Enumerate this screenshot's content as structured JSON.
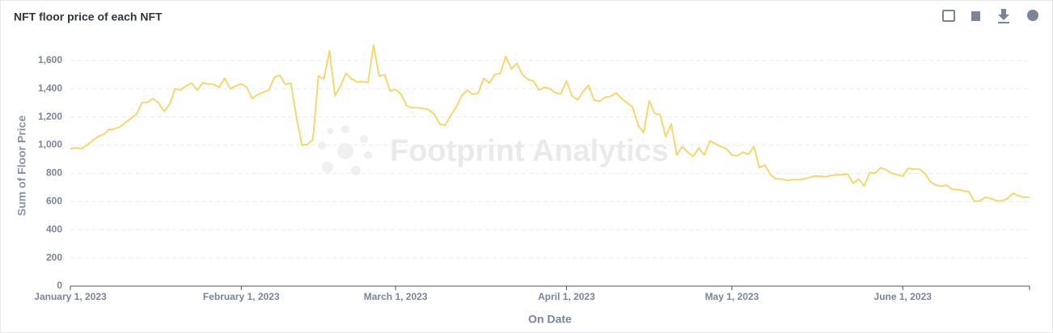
{
  "chart_data": {
    "type": "line",
    "title": "NFT floor price of each NFT",
    "xlabel": "On Date",
    "ylabel": "Sum of Floor Price",
    "watermark": "Footprint Analytics",
    "x": [
      "2023-01-01",
      "2023-01-02",
      "2023-01-03",
      "2023-01-04",
      "2023-01-05",
      "2023-01-06",
      "2023-01-07",
      "2023-01-08",
      "2023-01-09",
      "2023-01-10",
      "2023-01-11",
      "2023-01-12",
      "2023-01-13",
      "2023-01-14",
      "2023-01-15",
      "2023-01-16",
      "2023-01-17",
      "2023-01-18",
      "2023-01-19",
      "2023-01-20",
      "2023-01-21",
      "2023-01-22",
      "2023-01-23",
      "2023-01-24",
      "2023-01-25",
      "2023-01-26",
      "2023-01-27",
      "2023-01-28",
      "2023-01-29",
      "2023-01-30",
      "2023-01-31",
      "2023-02-01",
      "2023-02-02",
      "2023-02-03",
      "2023-02-04",
      "2023-02-05",
      "2023-02-06",
      "2023-02-07",
      "2023-02-08",
      "2023-02-09",
      "2023-02-10",
      "2023-02-11",
      "2023-02-12",
      "2023-02-13",
      "2023-02-14",
      "2023-02-15",
      "2023-02-16",
      "2023-02-17",
      "2023-02-18",
      "2023-02-19",
      "2023-02-20",
      "2023-02-21",
      "2023-02-22",
      "2023-02-23",
      "2023-02-24",
      "2023-02-25",
      "2023-02-26",
      "2023-02-27",
      "2023-02-28",
      "2023-03-01",
      "2023-03-02",
      "2023-03-03",
      "2023-03-04",
      "2023-03-05",
      "2023-03-06",
      "2023-03-07",
      "2023-03-08",
      "2023-03-09",
      "2023-03-10",
      "2023-03-11",
      "2023-03-12",
      "2023-03-13",
      "2023-03-14",
      "2023-03-15",
      "2023-03-16",
      "2023-03-17",
      "2023-03-18",
      "2023-03-19",
      "2023-03-20",
      "2023-03-21",
      "2023-03-22",
      "2023-03-23",
      "2023-03-24",
      "2023-03-25",
      "2023-03-26",
      "2023-03-27",
      "2023-03-28",
      "2023-03-29",
      "2023-03-30",
      "2023-03-31",
      "2023-04-01",
      "2023-04-02",
      "2023-04-03",
      "2023-04-04",
      "2023-04-05",
      "2023-04-06",
      "2023-04-07",
      "2023-04-08",
      "2023-04-09",
      "2023-04-10",
      "2023-04-11",
      "2023-04-12",
      "2023-04-13",
      "2023-04-14",
      "2023-04-15",
      "2023-04-16",
      "2023-04-17",
      "2023-04-18",
      "2023-04-19",
      "2023-04-20",
      "2023-04-21",
      "2023-04-22",
      "2023-04-23",
      "2023-04-24",
      "2023-04-25",
      "2023-04-26",
      "2023-04-27",
      "2023-04-28",
      "2023-04-29",
      "2023-04-30",
      "2023-05-01",
      "2023-05-02",
      "2023-05-03",
      "2023-05-04",
      "2023-05-05",
      "2023-05-06",
      "2023-05-07",
      "2023-05-08",
      "2023-05-09",
      "2023-05-10",
      "2023-05-11",
      "2023-05-12",
      "2023-05-13",
      "2023-05-14",
      "2023-05-15",
      "2023-05-16",
      "2023-05-17",
      "2023-05-18",
      "2023-05-19",
      "2023-05-20",
      "2023-05-21",
      "2023-05-22",
      "2023-05-23",
      "2023-05-24",
      "2023-05-25",
      "2023-05-26",
      "2023-05-27",
      "2023-05-28",
      "2023-05-29",
      "2023-05-30",
      "2023-05-31",
      "2023-06-01",
      "2023-06-02",
      "2023-06-03",
      "2023-06-04",
      "2023-06-05",
      "2023-06-06",
      "2023-06-07",
      "2023-06-08",
      "2023-06-09",
      "2023-06-10",
      "2023-06-11",
      "2023-06-12",
      "2023-06-13",
      "2023-06-14",
      "2023-06-15",
      "2023-06-16",
      "2023-06-17",
      "2023-06-18",
      "2023-06-19",
      "2023-06-20",
      "2023-06-21",
      "2023-06-22",
      "2023-06-23",
      "2023-06-24"
    ],
    "series": [
      {
        "name": "Sum of Floor Price",
        "color": "#f5d76e",
        "values": [
          975,
          980,
          975,
          1000,
          1030,
          1060,
          1075,
          1110,
          1115,
          1130,
          1160,
          1190,
          1220,
          1300,
          1305,
          1330,
          1300,
          1240,
          1290,
          1400,
          1390,
          1420,
          1440,
          1390,
          1440,
          1435,
          1430,
          1410,
          1475,
          1400,
          1420,
          1435,
          1410,
          1330,
          1360,
          1375,
          1390,
          1480,
          1495,
          1430,
          1440,
          1200,
          1000,
          1005,
          1040,
          1490,
          1470,
          1670,
          1350,
          1420,
          1510,
          1470,
          1450,
          1450,
          1445,
          1710,
          1490,
          1500,
          1385,
          1395,
          1360,
          1280,
          1265,
          1265,
          1260,
          1250,
          1220,
          1150,
          1140,
          1210,
          1270,
          1350,
          1390,
          1360,
          1370,
          1475,
          1440,
          1500,
          1510,
          1630,
          1540,
          1580,
          1500,
          1465,
          1455,
          1390,
          1410,
          1400,
          1370,
          1365,
          1455,
          1350,
          1320,
          1380,
          1425,
          1320,
          1310,
          1340,
          1345,
          1370,
          1330,
          1300,
          1270,
          1140,
          1090,
          1315,
          1225,
          1215,
          1060,
          1150,
          930,
          990,
          950,
          920,
          980,
          930,
          1030,
          1010,
          990,
          975,
          930,
          925,
          950,
          935,
          990,
          840,
          860,
          790,
          760,
          760,
          750,
          755,
          755,
          760,
          770,
          780,
          780,
          775,
          785,
          790,
          790,
          795,
          730,
          760,
          710,
          805,
          800,
          840,
          825,
          800,
          790,
          780,
          835,
          830,
          830,
          800,
          740,
          715,
          710,
          715,
          685,
          685,
          675,
          670,
          600,
          605,
          630,
          620,
          605,
          605,
          620,
          660,
          640,
          630,
          630
        ]
      }
    ],
    "xlim": [
      "2023-01-01",
      "2023-06-24"
    ],
    "xticks": [
      {
        "value": "2023-01-01",
        "label": "January 1, 2023"
      },
      {
        "value": "2023-02-01",
        "label": "February 1, 2023"
      },
      {
        "value": "2023-03-01",
        "label": "March 1, 2023"
      },
      {
        "value": "2023-04-01",
        "label": "April 1, 2023"
      },
      {
        "value": "2023-05-01",
        "label": "May 1, 2023"
      },
      {
        "value": "2023-06-01",
        "label": "June 1, 2023"
      }
    ],
    "ylim": [
      0,
      1800
    ],
    "yticks": [
      0,
      200,
      400,
      600,
      800,
      {
        "value": 1000,
        "label": "1,000"
      },
      {
        "value": 1200,
        "label": "1,200"
      },
      {
        "value": 1400,
        "label": "1,400"
      },
      {
        "value": 1600,
        "label": "1,600"
      }
    ],
    "grid": true
  }
}
